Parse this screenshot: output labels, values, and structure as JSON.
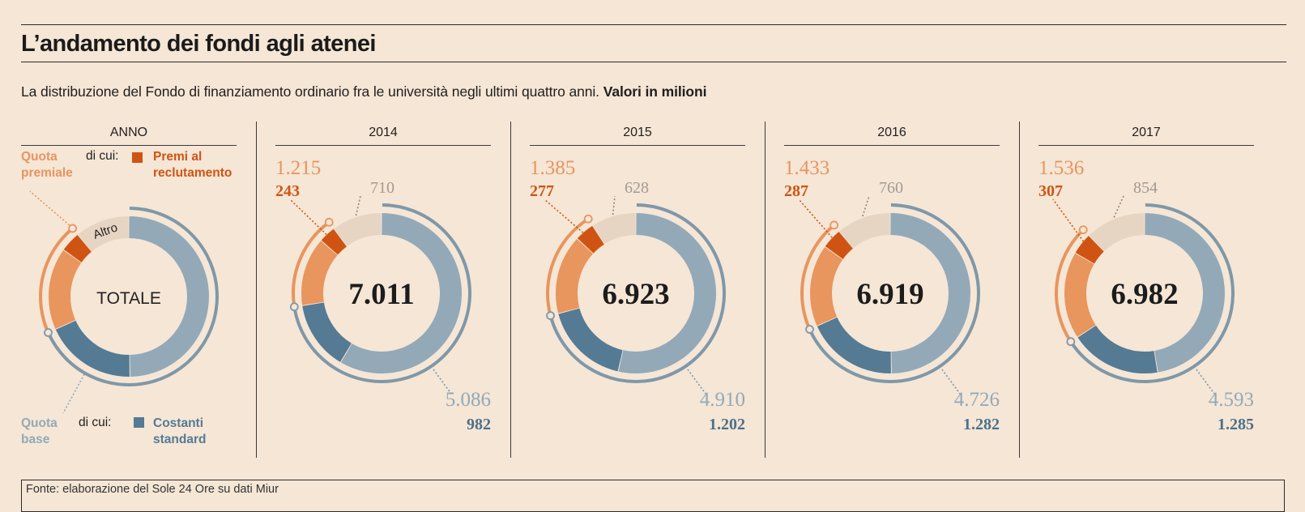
{
  "title": "L’andamento dei fondi agli atenei",
  "subtitle": "La distribuzione del Fondo di finanziamento ordinario fra le università negli ultimi quattro anni.",
  "subtitle_bold": "Valori in milioni",
  "legend": {
    "column_header": "ANNO",
    "center_label": "TOTALE",
    "altro_label": "Altro",
    "quota_premiale": [
      "Quota",
      "premiale"
    ],
    "di_cui_top": "di cui:",
    "premi_reclutamento": [
      "Premi al",
      "reclutamento"
    ],
    "quota_base": [
      "Quota",
      "base"
    ],
    "di_cui_bottom": "di cui:",
    "costanti_standard": [
      "Costanti",
      "standard"
    ]
  },
  "colors": {
    "background": "#f5e6d6",
    "premiale": "#e8955e",
    "reclutamento": "#cf5413",
    "altro": "#e6d5c3",
    "base": "#93a9b8",
    "costanti": "#557a93",
    "outer_premiale": "#e8955e",
    "outer_base": "#7f98a8"
  },
  "chart_data": {
    "type": "donut",
    "unit": "milioni di euro",
    "years": [
      {
        "year": "2014",
        "totale": "7.011",
        "totale_value": 7011,
        "premiale": "1.215",
        "premiale_value": 1215,
        "reclutamento": "243",
        "reclutamento_value": 243,
        "altro": "710",
        "altro_value": 710,
        "base": "5.086",
        "base_value": 5086,
        "costanti": "982",
        "costanti_value": 982
      },
      {
        "year": "2015",
        "totale": "6.923",
        "totale_value": 6923,
        "premiale": "1.385",
        "premiale_value": 1385,
        "reclutamento": "277",
        "reclutamento_value": 277,
        "altro": "628",
        "altro_value": 628,
        "base": "4.910",
        "base_value": 4910,
        "costanti": "1.202",
        "costanti_value": 1202
      },
      {
        "year": "2016",
        "totale": "6.919",
        "totale_value": 6919,
        "premiale": "1.433",
        "premiale_value": 1433,
        "reclutamento": "287",
        "reclutamento_value": 287,
        "altro": "760",
        "altro_value": 760,
        "base": "4.726",
        "base_value": 4726,
        "costanti": "1.282",
        "costanti_value": 1282
      },
      {
        "year": "2017",
        "totale": "6.982",
        "totale_value": 6982,
        "premiale": "1.536",
        "premiale_value": 1536,
        "reclutamento": "307",
        "reclutamento_value": 307,
        "altro": "854",
        "altro_value": 854,
        "base": "4.593",
        "base_value": 4593,
        "costanti": "1.285",
        "costanti_value": 1285
      }
    ]
  },
  "source": "Fonte: elaborazione del Sole 24 Ore su dati Miur"
}
